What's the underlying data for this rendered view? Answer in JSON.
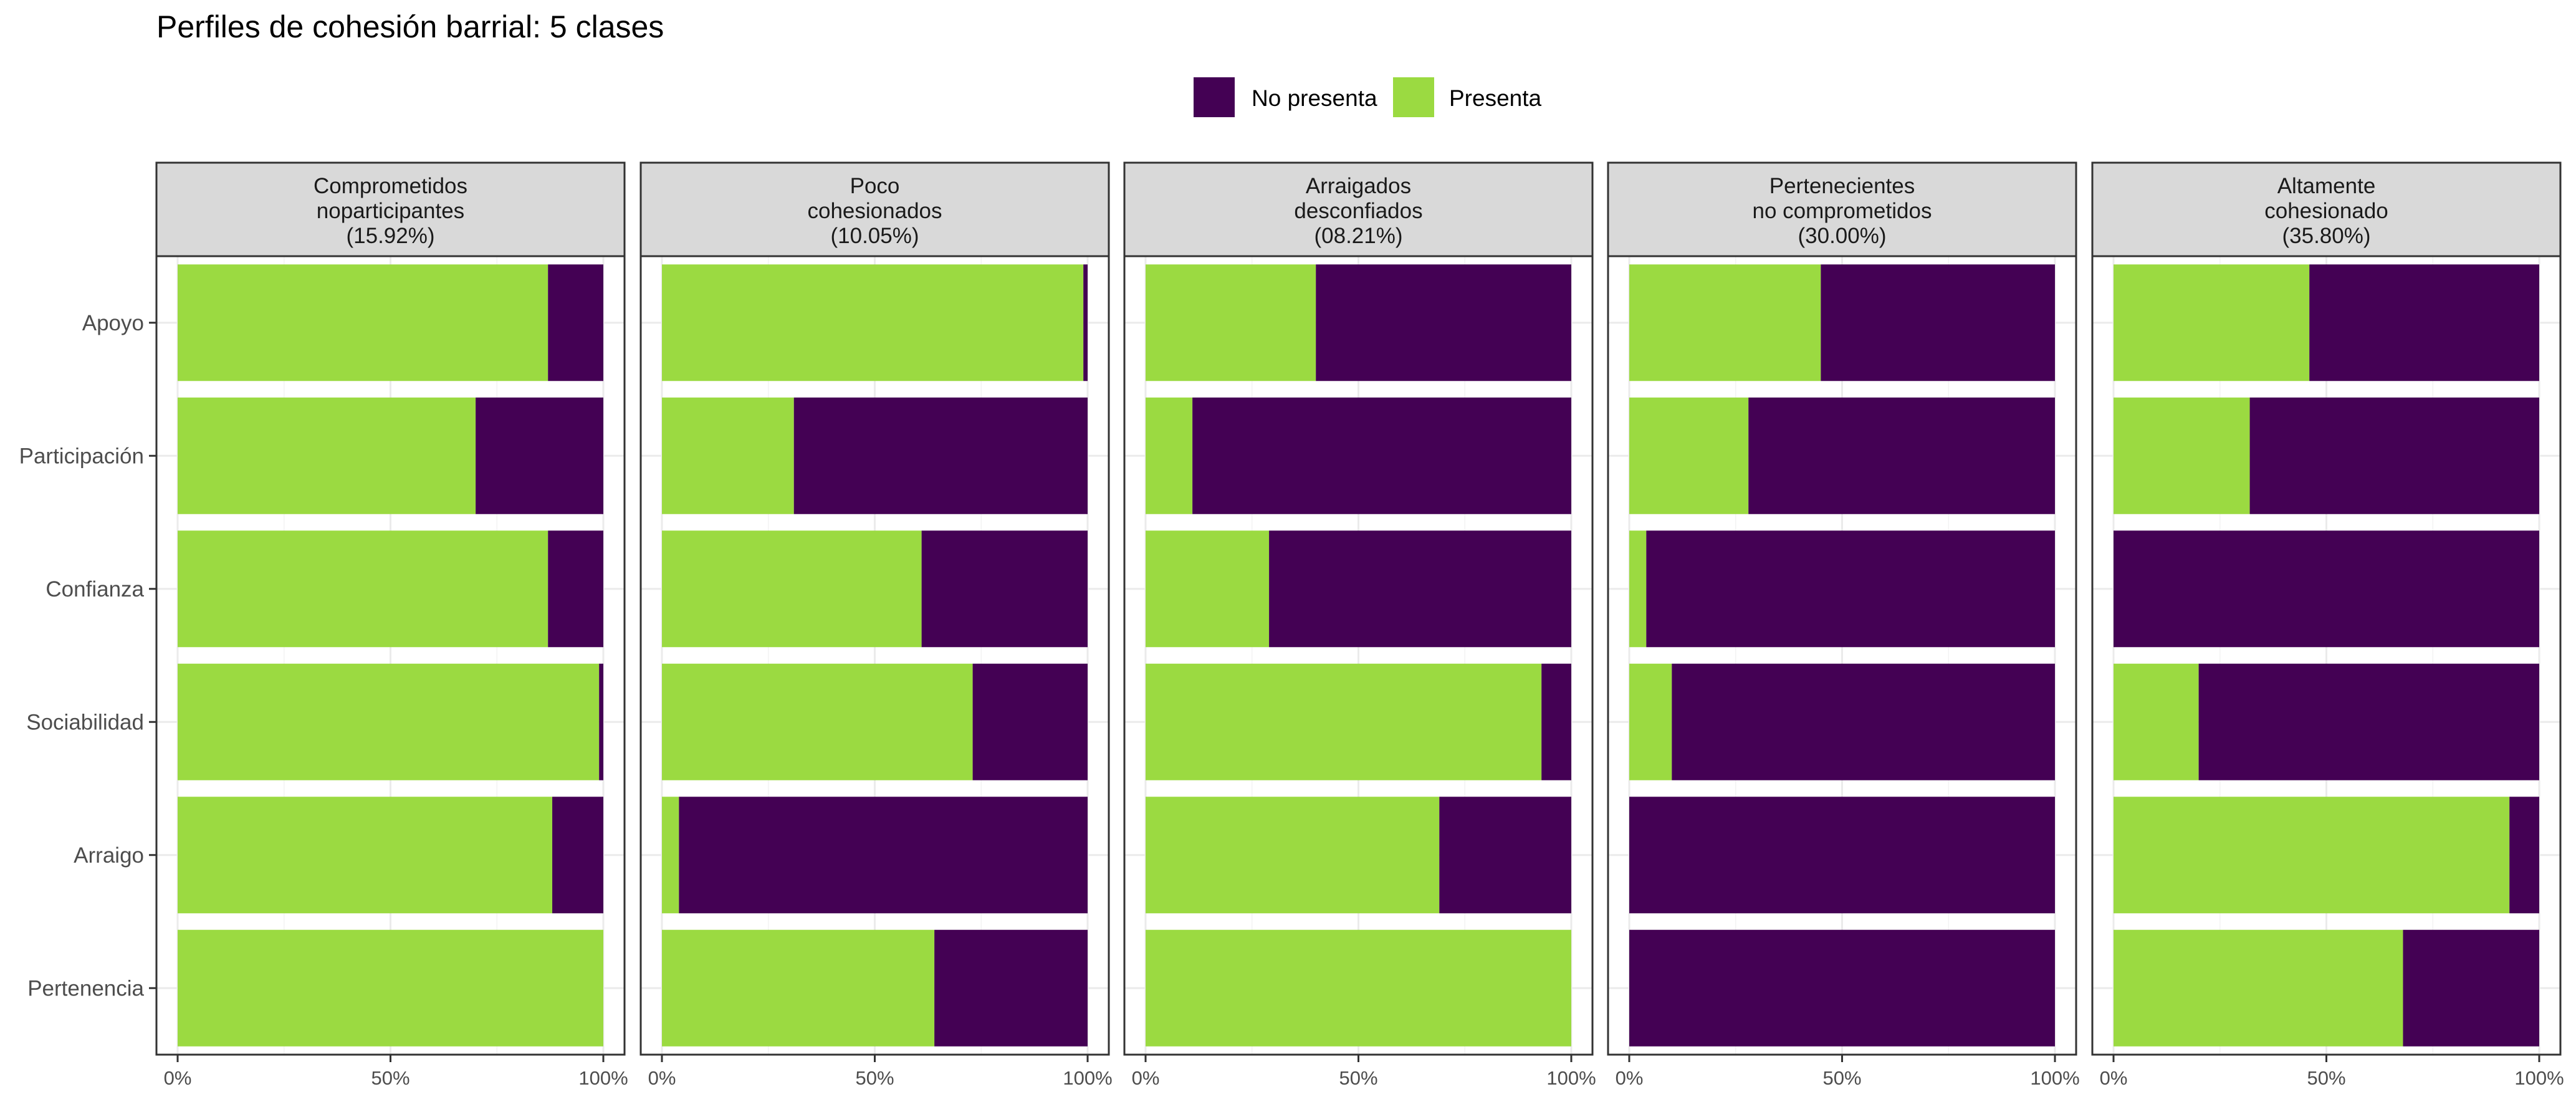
{
  "chart_data": {
    "type": "bar",
    "orientation": "horizontal",
    "stacked": true,
    "title": "Perfiles de cohesión barrial: 5 clases",
    "legend": {
      "position": "top",
      "entries": [
        {
          "label": "No presenta",
          "color": "#440154"
        },
        {
          "label": "Presenta",
          "color": "#9bda41"
        }
      ]
    },
    "categories": [
      "Apoyo",
      "Participación",
      "Confianza",
      "Sociabilidad",
      "Arraigo",
      "Pertenencia"
    ],
    "xlim": [
      0,
      100
    ],
    "x_ticks": [
      "0%",
      "50%",
      "100%"
    ],
    "grid": true,
    "panels": [
      {
        "strip": [
          "Comprometidos",
          "noparticipantes",
          "(15.92%)"
        ],
        "presenta": [
          87,
          70,
          87,
          99,
          88,
          100
        ]
      },
      {
        "strip": [
          "Poco",
          "cohesionados",
          "(10.05%)"
        ],
        "presenta": [
          99,
          31,
          61,
          73,
          4,
          64
        ]
      },
      {
        "strip": [
          "Arraigados",
          "desconfiados",
          "(08.21%)"
        ],
        "presenta": [
          40,
          11,
          29,
          93,
          69,
          100
        ]
      },
      {
        "strip": [
          "Pertenecientes",
          "no comprometidos",
          "(30.00%)"
        ],
        "presenta": [
          45,
          28,
          4,
          10,
          0,
          0
        ]
      },
      {
        "strip": [
          "Altamente",
          "cohesionado",
          "(35.80%)"
        ],
        "presenta": [
          46,
          32,
          0,
          20,
          93,
          68
        ]
      }
    ]
  }
}
